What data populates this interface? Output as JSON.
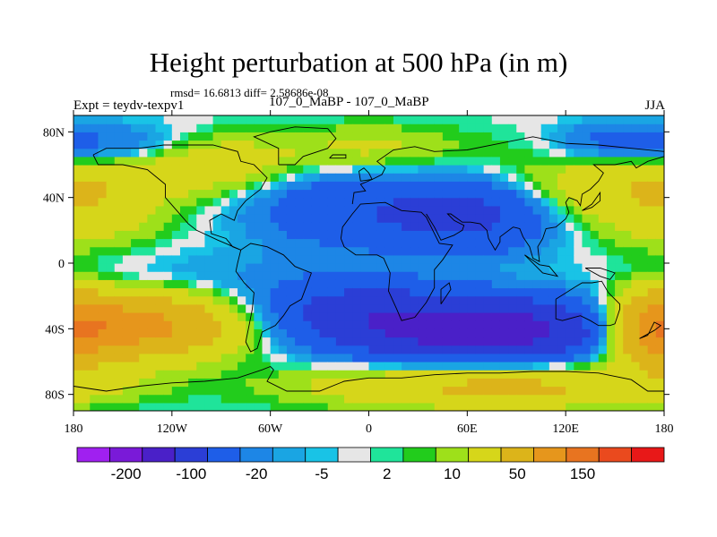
{
  "chart_data": {
    "type": "heatmap",
    "title": "Height perturbation at 500 hPa (in m)",
    "subtitle": "rmsd= 16.6813 diff= 2.58686e-08",
    "left_label": "Expt = teydv-texpv1",
    "center_label": "107_0_MaBP - 107_0_MaBP",
    "right_label": "JJA",
    "xlim": [
      -180,
      180
    ],
    "ylim": [
      -90,
      90
    ],
    "x_ticks": [
      {
        "value": -180,
        "label": "180"
      },
      {
        "value": -120,
        "label": "120W"
      },
      {
        "value": -60,
        "label": "60W"
      },
      {
        "value": 0,
        "label": "0"
      },
      {
        "value": 60,
        "label": "60E"
      },
      {
        "value": 120,
        "label": "120E"
      },
      {
        "value": 180,
        "label": "180"
      }
    ],
    "y_ticks": [
      {
        "value": 80,
        "label": "80N"
      },
      {
        "value": 40,
        "label": "40N"
      },
      {
        "value": 0,
        "label": "0"
      },
      {
        "value": -40,
        "label": "40S"
      },
      {
        "value": -80,
        "label": "80S"
      }
    ],
    "colorbar": {
      "colors": [
        "#a020f0",
        "#7a1ad8",
        "#4a20c8",
        "#2b3ed6",
        "#1e5ee8",
        "#1d86e6",
        "#1aa5e3",
        "#19c3e6",
        "#e6e6e6",
        "#1fe49a",
        "#22cc1c",
        "#9ee01a",
        "#d6d61a",
        "#dcb41a",
        "#e6961c",
        "#e87420",
        "#ea4a1e",
        "#e81818"
      ],
      "tick_labels": [
        "-200",
        "-100",
        "-20",
        "-5",
        "2",
        "10",
        "50",
        "150"
      ],
      "label_boundaries": [
        1,
        3,
        5,
        7,
        9,
        11,
        13,
        15
      ]
    },
    "fields": [
      {
        "lon": -140,
        "lat": -38,
        "value": 120,
        "spread_lon": 40,
        "spread_lat": 14
      },
      {
        "lon": 175,
        "lat": -40,
        "value": 110,
        "spread_lon": 20,
        "spread_lat": 16
      },
      {
        "lon": 70,
        "lat": -40,
        "value": -140,
        "spread_lon": 55,
        "spread_lat": 13
      },
      {
        "lon": -10,
        "lat": -28,
        "value": -50,
        "spread_lon": 40,
        "spread_lat": 14
      },
      {
        "lon": 60,
        "lat": 30,
        "value": -70,
        "spread_lon": 45,
        "spread_lat": 16
      },
      {
        "lon": -30,
        "lat": 35,
        "value": -30,
        "spread_lon": 35,
        "spread_lat": 18
      },
      {
        "lon": -100,
        "lat": 60,
        "value": 40,
        "spread_lon": 40,
        "spread_lat": 12
      },
      {
        "lon": 140,
        "lat": 45,
        "value": 45,
        "spread_lon": 45,
        "spread_lat": 20
      },
      {
        "lon": -165,
        "lat": 40,
        "value": 30,
        "spread_lon": 30,
        "spread_lat": 20
      },
      {
        "lon": 80,
        "lat": -75,
        "value": 60,
        "spread_lon": 80,
        "spread_lat": 9
      },
      {
        "lon": -150,
        "lat": 70,
        "value": -35,
        "spread_lon": 30,
        "spread_lat": 10
      },
      {
        "lon": 150,
        "lat": 72,
        "value": -40,
        "spread_lon": 30,
        "spread_lat": 10
      },
      {
        "lon": -120,
        "lat": -10,
        "value": -12,
        "spread_lon": 60,
        "spread_lat": 12
      },
      {
        "lon": 0,
        "lat": 70,
        "value": 25,
        "spread_lon": 40,
        "spread_lat": 10
      }
    ]
  }
}
